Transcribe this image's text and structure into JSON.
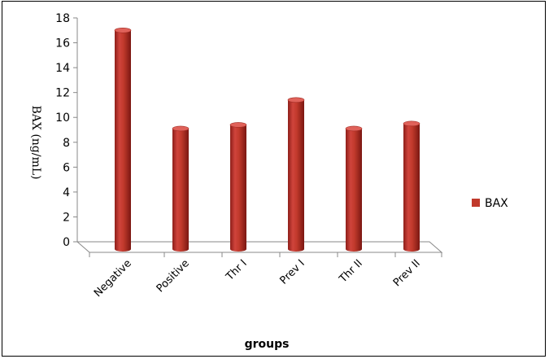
{
  "chart_data": {
    "type": "bar",
    "style": "3d-cylinder",
    "categories": [
      "Negative",
      "Positive",
      "Thr I",
      "Prev I",
      "Thr II",
      "Prev II"
    ],
    "series": [
      {
        "name": "BAX",
        "values": [
          17.0,
          9.1,
          9.4,
          11.4,
          9.1,
          9.5
        ],
        "color": "#c0392b"
      }
    ],
    "xlabel": "groups",
    "ylabel": "BAX (ng/mL)",
    "ylim": [
      0,
      18
    ],
    "yticks": [
      0,
      2,
      4,
      6,
      8,
      10,
      12,
      14,
      16,
      18
    ],
    "grid": false,
    "legend_position": "right"
  }
}
